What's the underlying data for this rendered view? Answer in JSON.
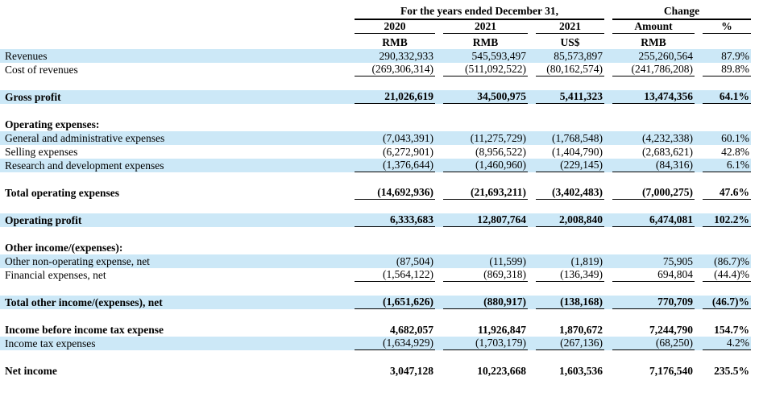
{
  "table": {
    "group_headers": {
      "years": "For the years ended December 31,",
      "change": "Change"
    },
    "col_headers": [
      "2020",
      "2021",
      "2021",
      "Amount",
      "%"
    ],
    "col_subheaders": [
      "RMB",
      "RMB",
      "US$",
      "RMB",
      ""
    ],
    "highlight_color": "#cce8f7",
    "rows": [
      {
        "label": "Revenues",
        "bold": false,
        "highlight": true,
        "underline": false,
        "values": [
          "290,332,933",
          "545,593,497",
          "85,573,897",
          "255,260,564",
          "87.9%"
        ]
      },
      {
        "label": "Cost of revenues",
        "bold": false,
        "highlight": false,
        "underline": true,
        "values": [
          "(269,306,314)",
          "(511,092,522)",
          "(80,162,574)",
          "(241,786,208)",
          "89.8%"
        ]
      },
      {
        "type": "spacer"
      },
      {
        "label": "Gross profit",
        "bold": true,
        "highlight": true,
        "underline": true,
        "values": [
          "21,026,619",
          "34,500,975",
          "5,411,323",
          "13,474,356",
          "64.1%"
        ]
      },
      {
        "type": "spacer"
      },
      {
        "label": "Operating expenses:",
        "bold": true,
        "highlight": false,
        "underline": false,
        "values": null
      },
      {
        "label": "General and administrative expenses",
        "bold": false,
        "highlight": true,
        "underline": false,
        "values": [
          "(7,043,391)",
          "(11,275,729)",
          "(1,768,548)",
          "(4,232,338)",
          "60.1%"
        ]
      },
      {
        "label": "Selling expenses",
        "bold": false,
        "highlight": false,
        "underline": false,
        "values": [
          "(6,272,901)",
          "(8,956,522)",
          "(1,404,790)",
          "(2,683,621)",
          "42.8%"
        ]
      },
      {
        "label": "Research and development expenses",
        "bold": false,
        "highlight": true,
        "underline": true,
        "values": [
          "(1,376,644)",
          "(1,460,960)",
          "(229,145)",
          "(84,316)",
          "6.1%"
        ]
      },
      {
        "type": "spacer"
      },
      {
        "label": "Total operating expenses",
        "bold": true,
        "highlight": false,
        "underline": true,
        "values": [
          "(14,692,936)",
          "(21,693,211)",
          "(3,402,483)",
          "(7,000,275)",
          "47.6%"
        ]
      },
      {
        "type": "spacer"
      },
      {
        "label": "Operating profit",
        "bold": true,
        "highlight": true,
        "underline": true,
        "values": [
          "6,333,683",
          "12,807,764",
          "2,008,840",
          "6,474,081",
          "102.2%"
        ]
      },
      {
        "type": "spacer"
      },
      {
        "label": "Other income/(expenses):",
        "bold": true,
        "highlight": false,
        "underline": false,
        "values": null
      },
      {
        "label": "Other non-operating expense, net",
        "bold": false,
        "highlight": true,
        "underline": false,
        "values": [
          "(87,504)",
          "(11,599)",
          "(1,819)",
          "75,905",
          "(86.7)%"
        ]
      },
      {
        "label": "Financial expenses, net",
        "bold": false,
        "highlight": false,
        "underline": true,
        "values": [
          "(1,564,122)",
          "(869,318)",
          "(136,349)",
          "694,804",
          "(44.4)%"
        ]
      },
      {
        "type": "spacer"
      },
      {
        "label": "Total other income/(expenses), net",
        "bold": true,
        "highlight": true,
        "underline": true,
        "values": [
          "(1,651,626)",
          "(880,917)",
          "(138,168)",
          "770,709",
          "(46.7)%"
        ]
      },
      {
        "type": "spacer"
      },
      {
        "label": "Income before income tax expense",
        "bold": true,
        "highlight": false,
        "underline": false,
        "values": [
          "4,682,057",
          "11,926,847",
          "1,870,672",
          "7,244,790",
          "154.7%"
        ]
      },
      {
        "label": "Income tax expenses",
        "bold": false,
        "highlight": true,
        "underline": true,
        "values": [
          "(1,634,929)",
          "(1,703,179)",
          "(267,136)",
          "(68,250)",
          "4.2%"
        ]
      },
      {
        "type": "spacer"
      },
      {
        "label": "Net income",
        "bold": true,
        "highlight": false,
        "underline": false,
        "values": [
          "3,047,128",
          "10,223,668",
          "1,603,536",
          "7,176,540",
          "235.5%"
        ]
      }
    ]
  }
}
